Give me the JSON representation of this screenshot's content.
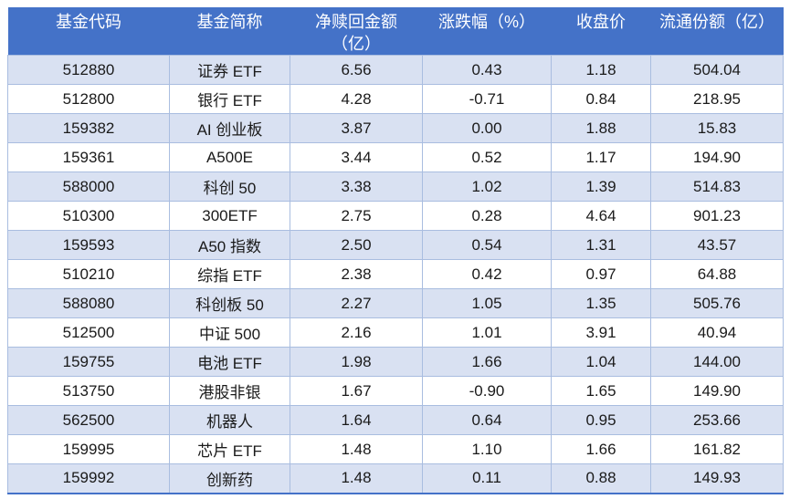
{
  "colors": {
    "header_bg": "#4472C8",
    "header_text": "#FFFFFF",
    "band_bg": "#D9E1F2",
    "grid_border": "#A9BDE0",
    "cell_text": "#1A1A1A"
  },
  "table": {
    "columns": [
      {
        "key": "code",
        "label": "基金代码"
      },
      {
        "key": "name",
        "label": "基金简称"
      },
      {
        "key": "net",
        "label": "净赎回金额\n（亿）"
      },
      {
        "key": "chg",
        "label": "涨跌幅（%）"
      },
      {
        "key": "close",
        "label": "收盘价"
      },
      {
        "key": "float",
        "label": "流通份额（亿）"
      }
    ],
    "rows": [
      [
        "512880",
        "证券 ETF",
        "6.56",
        "0.43",
        "1.18",
        "504.04"
      ],
      [
        "512800",
        "银行 ETF",
        "4.28",
        "-0.71",
        "0.84",
        "218.95"
      ],
      [
        "159382",
        "AI 创业板",
        "3.87",
        "0.00",
        "1.88",
        "15.83"
      ],
      [
        "159361",
        "A500E",
        "3.44",
        "0.52",
        "1.17",
        "194.90"
      ],
      [
        "588000",
        "科创 50",
        "3.38",
        "1.02",
        "1.39",
        "514.83"
      ],
      [
        "510300",
        "300ETF",
        "2.75",
        "0.28",
        "4.64",
        "901.23"
      ],
      [
        "159593",
        "A50 指数",
        "2.50",
        "0.54",
        "1.31",
        "43.57"
      ],
      [
        "510210",
        "综指 ETF",
        "2.38",
        "0.42",
        "0.97",
        "64.88"
      ],
      [
        "588080",
        "科创板 50",
        "2.27",
        "1.05",
        "1.35",
        "505.76"
      ],
      [
        "512500",
        "中证 500",
        "2.16",
        "1.01",
        "3.91",
        "40.94"
      ],
      [
        "159755",
        "电池 ETF",
        "1.98",
        "1.66",
        "1.04",
        "144.00"
      ],
      [
        "513750",
        "港股非银",
        "1.67",
        "-0.90",
        "1.65",
        "149.90"
      ],
      [
        "562500",
        "机器人",
        "1.64",
        "0.64",
        "0.95",
        "253.66"
      ],
      [
        "159995",
        "芯片 ETF",
        "1.48",
        "1.10",
        "1.66",
        "161.82"
      ],
      [
        "159992",
        "创新药",
        "1.48",
        "0.11",
        "0.88",
        "149.93"
      ]
    ]
  }
}
